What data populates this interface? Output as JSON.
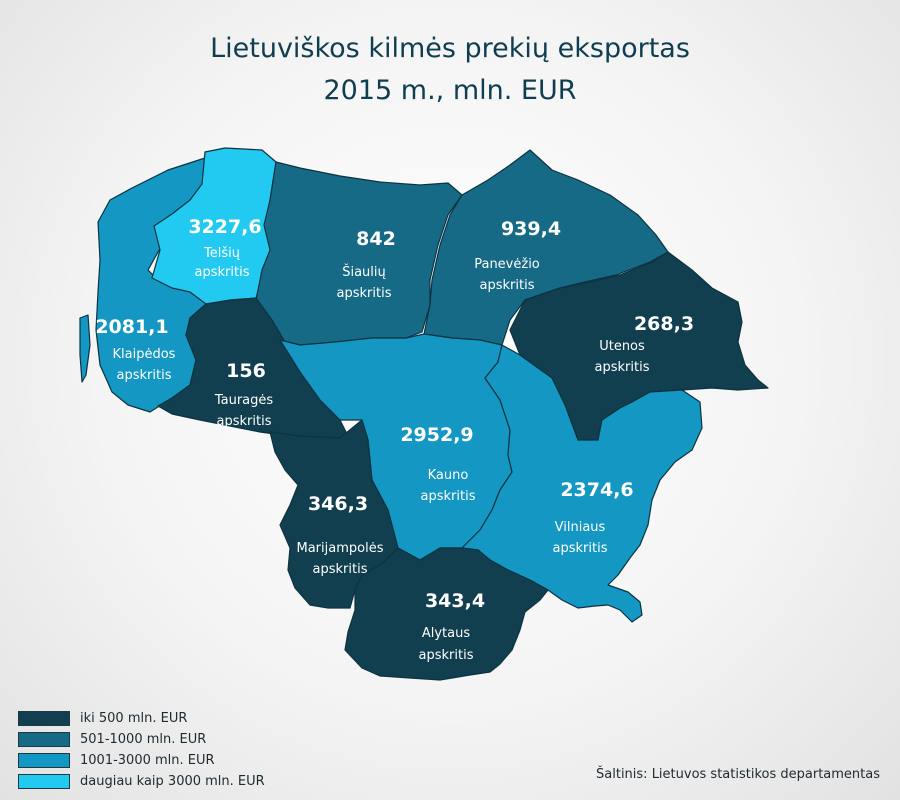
{
  "title": {
    "line1": "Lietuviškos kilmės prekių eksportas",
    "line2": "2015 m., mln. EUR"
  },
  "colors": {
    "cat1": "#123f4f",
    "cat2": "#166a86",
    "cat3": "#1497c2",
    "cat4": "#22c9f0"
  },
  "regions": [
    {
      "id": "telsiu",
      "value": "3227,6",
      "line1": "Telšių",
      "line2": "apskritis",
      "category": 4
    },
    {
      "id": "siauliu",
      "value": "842",
      "line1": "Šiaulių",
      "line2": "apskritis",
      "category": 2
    },
    {
      "id": "panevezio",
      "value": "939,4",
      "line1": "Panevėžio",
      "line2": "apskritis",
      "category": 2
    },
    {
      "id": "klaipedos",
      "value": "2081,1",
      "line1": "Klaipėdos",
      "line2": "apskritis",
      "category": 3
    },
    {
      "id": "utenos",
      "value": "268,3",
      "line1": "Utenos",
      "line2": "apskritis",
      "category": 1
    },
    {
      "id": "taurages",
      "value": "156",
      "line1": "Tauragės",
      "line2": "apskritis",
      "category": 1
    },
    {
      "id": "kauno",
      "value": "2952,9",
      "line1": "Kauno",
      "line2": "apskritis",
      "category": 3
    },
    {
      "id": "vilniaus",
      "value": "2374,6",
      "line1": "Vilniaus",
      "line2": "apskritis",
      "category": 3
    },
    {
      "id": "marijampoles",
      "value": "346,3",
      "line1": "Marijampolės",
      "line2": "apskritis",
      "category": 1
    },
    {
      "id": "alytaus",
      "value": "343,4",
      "line1": "Alytaus",
      "line2": "apskritis",
      "category": 1
    }
  ],
  "legend": [
    {
      "label": "iki 500 mln. EUR",
      "category": 1
    },
    {
      "label": "501-1000 mln. EUR",
      "category": 2
    },
    {
      "label": "1001-3000 mln. EUR",
      "category": 3
    },
    {
      "label": "daugiau kaip 3000 mln. EUR",
      "category": 4
    }
  ],
  "source": "Šaltinis: Lietuvos statistikos departamentas"
}
